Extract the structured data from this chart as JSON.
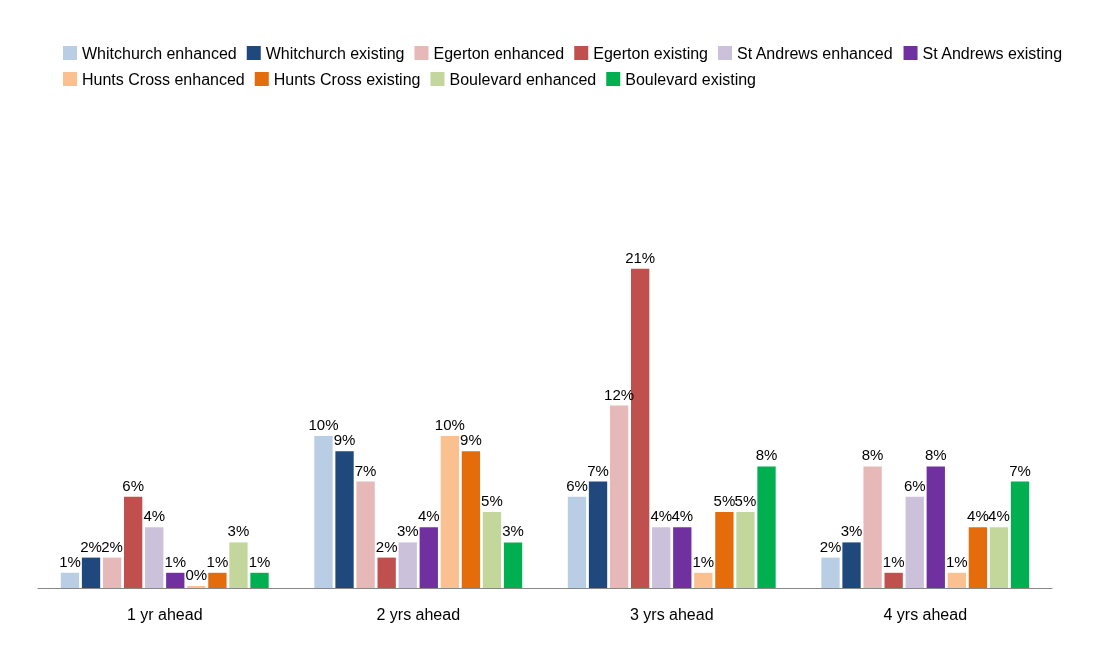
{
  "chart_data": {
    "type": "bar",
    "categories": [
      "1 yr ahead",
      "2 yrs ahead",
      "3 yrs ahead",
      "4 yrs ahead"
    ],
    "series": [
      {
        "name": "Whitchurch enhanced",
        "color": "#b9cde5",
        "values": [
          1,
          10,
          6,
          2
        ],
        "value_labels": [
          "1%",
          "10%",
          "6%",
          "2%"
        ]
      },
      {
        "name": "Whitchurch existing",
        "color": "#1f497d",
        "values": [
          2,
          9,
          7,
          3
        ],
        "value_labels": [
          "2%",
          "9%",
          "7%",
          "3%"
        ]
      },
      {
        "name": "Egerton enhanced",
        "color": "#e6b9b8",
        "values": [
          2,
          7,
          12,
          8
        ],
        "value_labels": [
          "2%",
          "7%",
          "12%",
          "8%"
        ]
      },
      {
        "name": "Egerton existing",
        "color": "#c0504d",
        "values": [
          6,
          2,
          21,
          1
        ],
        "value_labels": [
          "6%",
          "2%",
          "21%",
          "1%"
        ]
      },
      {
        "name": "St Andrews enhanced",
        "color": "#ccc1da",
        "values": [
          4,
          3,
          4,
          6
        ],
        "value_labels": [
          "4%",
          "3%",
          "4%",
          "6%"
        ]
      },
      {
        "name": "St Andrews existing",
        "color": "#7030a0",
        "values": [
          1,
          4,
          4,
          8
        ],
        "value_labels": [
          "1%",
          "4%",
          "4%",
          "8%"
        ]
      },
      {
        "name": "Hunts Cross enhanced",
        "color": "#fac090",
        "values": [
          0,
          10,
          1,
          1
        ],
        "value_labels": [
          "0%",
          "10%",
          "1%",
          "1%"
        ]
      },
      {
        "name": "Hunts Cross existing",
        "color": "#e46c0a",
        "values": [
          1,
          9,
          5,
          4
        ],
        "value_labels": [
          "1%",
          "9%",
          "5%",
          "4%"
        ]
      },
      {
        "name": "Boulevard enhanced",
        "color": "#c3d69b",
        "values": [
          3,
          5,
          5,
          4
        ],
        "value_labels": [
          "3%",
          "5%",
          "5%",
          "4%"
        ]
      },
      {
        "name": "Boulevard existing",
        "color": "#00b050",
        "values": [
          1,
          3,
          8,
          7
        ],
        "value_labels": [
          "1%",
          "3%",
          "8%",
          "7%"
        ]
      }
    ],
    "legend": "top"
  }
}
